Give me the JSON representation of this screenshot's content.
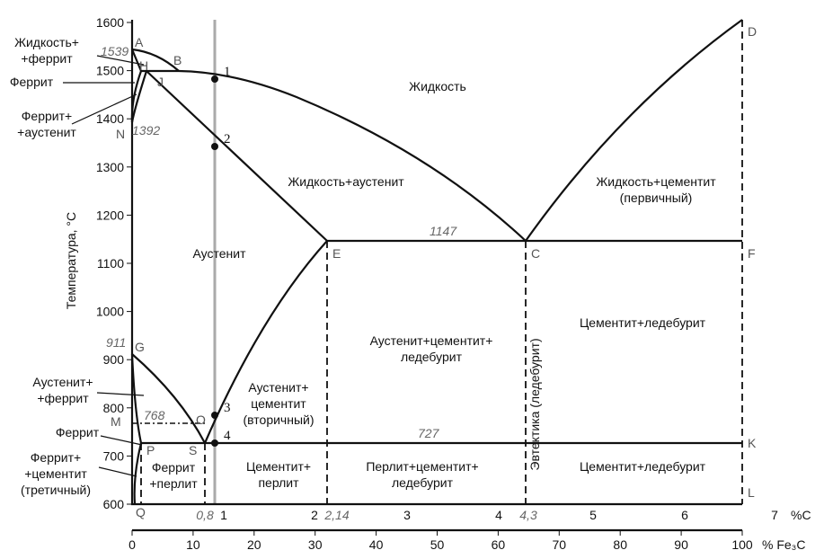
{
  "y_axis": {
    "label": "Температура, °C",
    "ticks": [
      "1600",
      "1500",
      "1400",
      "1300",
      "1200",
      "1100",
      "1000",
      "900",
      "800",
      "700",
      "600"
    ]
  },
  "carbon_axis": {
    "ticks": [
      "0,8",
      "1",
      "2",
      "2,14",
      "3",
      "4",
      "4,3",
      "5",
      "6",
      "7"
    ],
    "unit": "%C"
  },
  "fe3c_axis": {
    "ticks": [
      "0",
      "10",
      "20",
      "30",
      "40",
      "50",
      "60",
      "70",
      "80",
      "90",
      "100"
    ],
    "unit": "% Fe₃C"
  },
  "temperatures": [
    "1539",
    "1392",
    "911",
    "1147",
    "768",
    "727"
  ],
  "points": [
    "A",
    "B",
    "H",
    "J",
    "N",
    "E",
    "C",
    "F",
    "D",
    "G",
    "M",
    "O",
    "S",
    "P",
    "Q",
    "K",
    "L"
  ],
  "markers": [
    "1",
    "2",
    "3",
    "4"
  ],
  "regions": [
    {
      "lines": [
        "Жидкость+",
        "+феррит"
      ]
    },
    {
      "lines": [
        "Феррит"
      ]
    },
    {
      "lines": [
        "Феррит+",
        "+аустенит"
      ]
    },
    {
      "lines": [
        "Аустенит+",
        "+феррит"
      ]
    },
    {
      "lines": [
        "Феррит"
      ]
    },
    {
      "lines": [
        "Феррит+",
        "+цементит",
        "(третичный)"
      ]
    },
    {
      "lines": [
        "Жидкость"
      ]
    },
    {
      "lines": [
        "Жидкость+аустенит"
      ]
    },
    {
      "lines": [
        "Жидкость+цементит",
        "(первичный)"
      ]
    },
    {
      "lines": [
        "Аустенит"
      ]
    },
    {
      "lines": [
        "Аустенит+цементит+",
        "ледебурит"
      ]
    },
    {
      "lines": [
        "Цементит+ледебурит"
      ]
    },
    {
      "lines": [
        "Аустенит+",
        "цементит",
        "(вторичный)"
      ]
    },
    {
      "lines": [
        "Эвтектика (ледебурит)"
      ]
    },
    {
      "lines": [
        "Феррит",
        "+перлит"
      ]
    },
    {
      "lines": [
        "Цементит+",
        "перлит"
      ]
    },
    {
      "lines": [
        "Перлит+цементит+",
        "ледебурит"
      ]
    },
    {
      "lines": [
        "Цементит+ледебурит"
      ]
    }
  ]
}
